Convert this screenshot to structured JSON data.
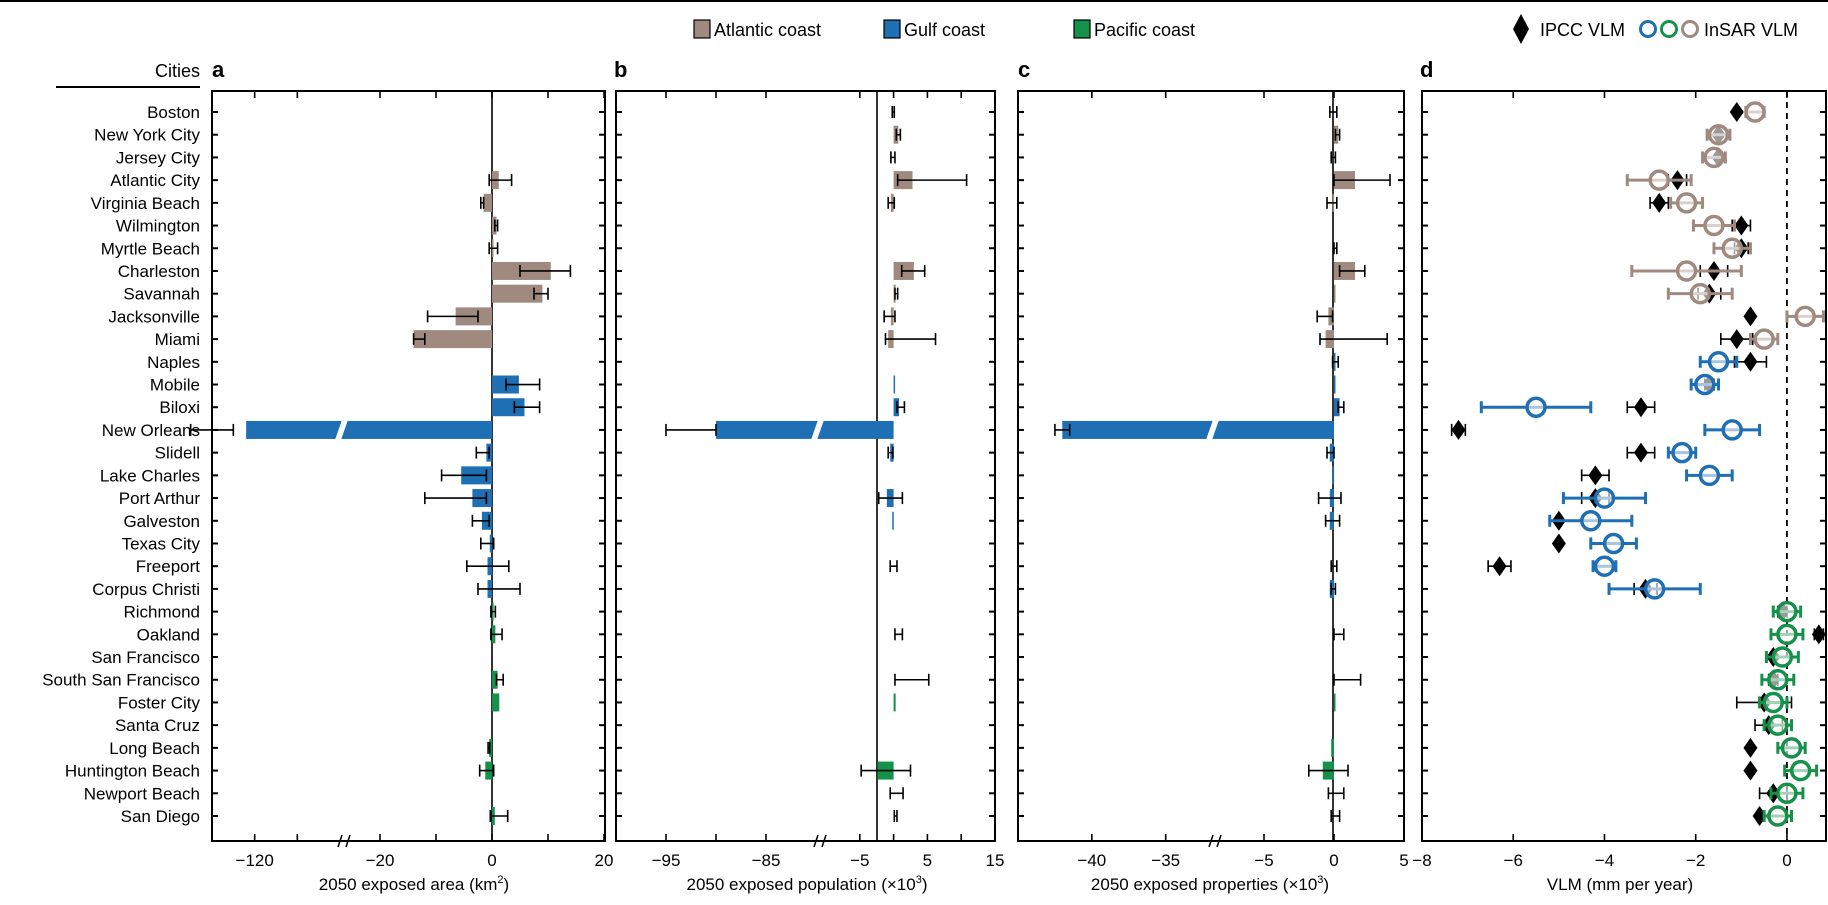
{
  "chart_data": [
    {
      "panel": "a",
      "type": "bar",
      "title": "",
      "xlabel": "2050 exposed area (km2)",
      "xlabel_main": "2050 exposed area (km",
      "xlabel_sup": "2",
      "xlabel_end": ")",
      "xlim": [
        -130,
        20
      ],
      "axis_break": [
        -125,
        -20
      ],
      "tick_labels": [
        "-120",
        "-20",
        "0",
        "20"
      ],
      "categories_ref": "cities",
      "values": [
        0,
        0,
        0,
        1.2,
        -1.5,
        0.8,
        0.1,
        10.5,
        9.0,
        -6.5,
        -14,
        0,
        4.8,
        5.8,
        -122,
        -1.0,
        -5.5,
        -3.5,
        -1.8,
        -0.4,
        -0.8,
        -0.8,
        0.3,
        0.6,
        0,
        1.0,
        1.3,
        0,
        -0.5,
        -1.2,
        0,
        0.5
      ],
      "err_low": [
        null,
        null,
        null,
        -0.5,
        -2.0,
        0.5,
        -0.5,
        5.0,
        7.5,
        -11.5,
        -14,
        null,
        2.5,
        4.0,
        -135,
        -2.8,
        -9.0,
        -12.0,
        -3.5,
        -2.0,
        -4.5,
        -2.5,
        -0.2,
        -0.2,
        null,
        0.8,
        null,
        null,
        -0.7,
        -2.2,
        null,
        -0.3
      ],
      "err_high": [
        null,
        null,
        null,
        3.5,
        -1.5,
        1.0,
        1.0,
        14.0,
        10.0,
        -2.5,
        -12,
        null,
        8.5,
        8.5,
        -125,
        -0.5,
        -1.0,
        -1.0,
        -0.5,
        0.3,
        3.0,
        5.0,
        0.6,
        1.8,
        null,
        2.0,
        null,
        null,
        -0.4,
        0.3,
        null,
        2.8
      ]
    },
    {
      "panel": "b",
      "type": "bar",
      "xlabel": "2050 exposed population (x10^3)",
      "xlabel_main": "2050 exposed population (×10",
      "xlabel_sup": "3",
      "xlabel_end": ")",
      "xlim": [
        -100,
        15
      ],
      "axis_break": [
        -80,
        -10
      ],
      "tick_labels": [
        "-95",
        "-85",
        "-5",
        "5",
        "15"
      ],
      "values": [
        0,
        0.7,
        0,
        2.8,
        -0.4,
        0,
        0,
        3.0,
        0.3,
        -0.4,
        -0.8,
        0,
        0.2,
        0.8,
        -90,
        -0.5,
        0,
        -1.0,
        -0.2,
        0,
        0,
        0,
        0,
        0,
        0,
        0,
        0.3,
        0,
        0,
        -2.4,
        0,
        0
      ],
      "err_low": [
        -0.2,
        0.4,
        -0.4,
        0.6,
        -0.8,
        null,
        null,
        1.2,
        0.2,
        -1.4,
        -1.2,
        null,
        null,
        0.5,
        -95,
        -0.8,
        null,
        -2.2,
        null,
        null,
        -0.5,
        null,
        null,
        0.2,
        null,
        0.2,
        null,
        null,
        null,
        -4.8,
        -0.5,
        0.1
      ],
      "err_high": [
        0.1,
        1.0,
        0.2,
        10.8,
        0.1,
        null,
        null,
        4.6,
        0.6,
        0.2,
        6.2,
        null,
        null,
        1.6,
        -90,
        -0.1,
        null,
        1.3,
        null,
        null,
        0.5,
        null,
        null,
        1.3,
        null,
        5.2,
        null,
        null,
        null,
        2.5,
        1.4,
        0.5
      ]
    },
    {
      "panel": "c",
      "type": "bar",
      "xlabel": "2050 exposed properties (x10^3)",
      "xlabel_main": "2050 exposed properties (×10",
      "xlabel_sup": "3",
      "xlabel_end": ")",
      "xlim": [
        -45,
        5
      ],
      "axis_break": [
        -32,
        -8
      ],
      "tick_labels": [
        "-40",
        "-35",
        "-5",
        "0",
        "5"
      ],
      "values": [
        0,
        0.3,
        0,
        1.5,
        -0.1,
        0,
        0,
        1.5,
        0.1,
        -0.4,
        -0.6,
        0.1,
        0.1,
        0.4,
        -42,
        -0.3,
        -0.1,
        -0.3,
        -0.3,
        0,
        0,
        -0.3,
        0,
        0,
        0,
        0,
        0.1,
        0,
        -0.2,
        -0.8,
        0,
        0
      ],
      "err_low": [
        -0.3,
        0.1,
        -0.2,
        0,
        -0.5,
        null,
        0,
        0.4,
        null,
        -1.2,
        -1.0,
        -0.1,
        null,
        0.3,
        -42.5,
        -0.5,
        null,
        -1.1,
        -0.6,
        null,
        -0.2,
        -0.2,
        null,
        0,
        null,
        0,
        null,
        null,
        null,
        -1.8,
        -0.4,
        -0.2
      ],
      "err_high": [
        0.2,
        0.4,
        0.1,
        4.0,
        0.2,
        null,
        0.2,
        2.2,
        null,
        -0.1,
        3.8,
        0.3,
        null,
        0.7,
        -41.5,
        0,
        null,
        0.5,
        0.4,
        null,
        0.2,
        0.1,
        null,
        0.7,
        null,
        1.9,
        null,
        null,
        null,
        1.0,
        0.7,
        0.4
      ]
    },
    {
      "panel": "d",
      "type": "scatter",
      "xlabel": "VLM (mm per year)",
      "xlim": [
        -8,
        0.9
      ],
      "tick_labels": [
        "-8",
        "-6",
        "-4",
        "-2",
        "0"
      ],
      "reference_line": 0,
      "series": [
        {
          "name": "IPCC VLM",
          "marker": "diamond",
          "values": [
            -1.1,
            -1.5,
            -1.5,
            -2.4,
            -2.8,
            -1.0,
            -1.0,
            -1.6,
            -1.7,
            -0.8,
            -1.1,
            -0.8,
            -1.7,
            -3.2,
            -7.2,
            -3.2,
            -4.2,
            -4.2,
            -5.0,
            -5.0,
            -6.3,
            -3.1,
            -0.1,
            0.7,
            -0.3,
            -0.3,
            -0.5,
            -0.4,
            -0.8,
            -0.8,
            -0.3,
            -0.6
          ],
          "err": [
            0.05,
            0.05,
            0.05,
            0.2,
            0.2,
            0.2,
            0.15,
            0.3,
            0.25,
            0.05,
            0.35,
            0.35,
            0.1,
            0.3,
            0.15,
            0.3,
            0.3,
            0.3,
            0.05,
            0,
            0.25,
            0.25,
            0.1,
            0.1,
            0.05,
            0.1,
            0.6,
            0.3,
            0,
            0,
            0.3,
            0.05
          ]
        },
        {
          "name": "InSAR VLM",
          "marker": "circle",
          "values": [
            -0.7,
            -1.5,
            -1.6,
            -2.8,
            -2.2,
            -1.6,
            -1.2,
            -2.2,
            -1.9,
            0.4,
            -0.5,
            -1.5,
            -1.8,
            -5.5,
            -1.2,
            -2.3,
            -1.7,
            -4.0,
            -4.3,
            -3.8,
            -4.0,
            -2.9,
            0,
            0,
            -0.1,
            -0.2,
            -0.3,
            -0.2,
            0.1,
            0.3,
            0,
            -0.2
          ],
          "err": [
            0.2,
            0.25,
            0.25,
            0.7,
            0.35,
            0.45,
            0.4,
            1.2,
            0.7,
            0.4,
            0.3,
            0.4,
            0.3,
            1.2,
            0.6,
            0.3,
            0.5,
            0.9,
            0.9,
            0.5,
            0.25,
            1.0,
            0.3,
            0.35,
            0.35,
            0.35,
            0.3,
            0.3,
            0.3,
            0.35,
            0.35,
            0.3
          ]
        }
      ]
    }
  ],
  "cities_header": "Cities",
  "panel_labels": [
    "a",
    "b",
    "c",
    "d"
  ],
  "cities": [
    "Boston",
    "New York City",
    "Jersey City",
    "Atlantic City",
    "Virginia Beach",
    "Wilmington",
    "Myrtle Beach",
    "Charleston",
    "Savannah",
    "Jacksonville",
    "Miami",
    "Naples",
    "Mobile",
    "Biloxi",
    "New Orleans",
    "Slidell",
    "Lake Charles",
    "Port Arthur",
    "Galveston",
    "Texas City",
    "Freeport",
    "Corpus Christi",
    "Richmond",
    "Oakland",
    "San Francisco",
    "South San Francisco",
    "Foster City",
    "Santa Cruz",
    "Long Beach",
    "Huntington Beach",
    "Newport Beach",
    "San Diego"
  ],
  "coast": [
    "atlantic",
    "atlantic",
    "atlantic",
    "atlantic",
    "atlantic",
    "atlantic",
    "atlantic",
    "atlantic",
    "atlantic",
    "atlantic",
    "atlantic",
    "gulf",
    "gulf",
    "gulf",
    "gulf",
    "gulf",
    "gulf",
    "gulf",
    "gulf",
    "gulf",
    "gulf",
    "gulf",
    "pacific",
    "pacific",
    "pacific",
    "pacific",
    "pacific",
    "pacific",
    "pacific",
    "pacific",
    "pacific",
    "pacific"
  ],
  "legend": {
    "items": [
      {
        "label": "Atlantic coast",
        "key": "atlantic"
      },
      {
        "label": "Gulf coast",
        "key": "gulf"
      },
      {
        "label": "Pacific coast",
        "key": "pacific"
      }
    ],
    "ipcc_label": "IPCC VLM",
    "insar_label": "InSAR VLM"
  },
  "colors": {
    "atlantic": "#a08a80",
    "gulf": "#1f6fb5",
    "pacific": "#15914a",
    "ipcc": "#000000"
  }
}
